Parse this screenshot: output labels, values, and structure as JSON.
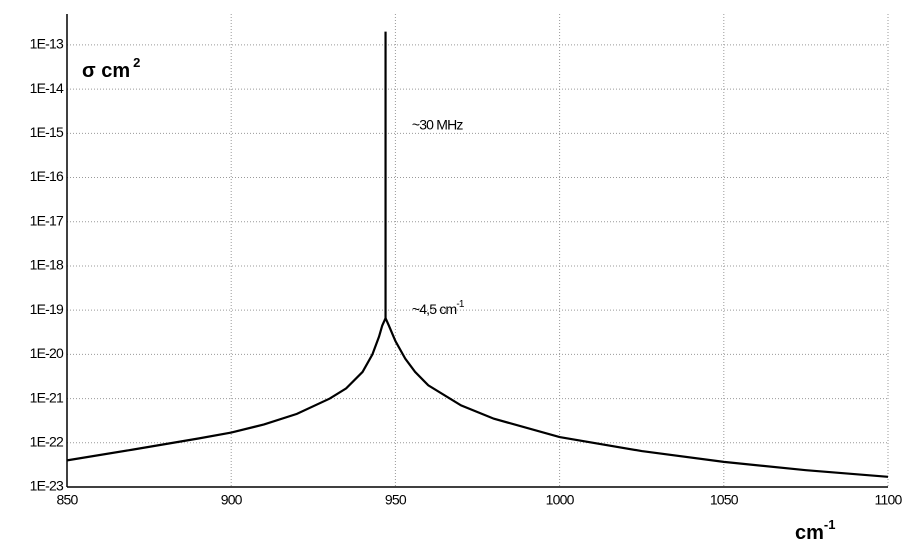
{
  "chart_data": {
    "type": "line",
    "ylabel": "σ cm",
    "ylabel_sup": "2",
    "xlabel": "cm",
    "xlabel_sup": "-1",
    "annotations": [
      {
        "text": "~30 MHz",
        "x": 955,
        "y": 1.5e-15
      },
      {
        "text": "~4,5 cm",
        "sup": "-1",
        "x": 955,
        "y": 1e-19
      }
    ],
    "log_y": true,
    "grid": true,
    "xlim": [
      850,
      1100
    ],
    "xticks": [
      850,
      900,
      950,
      1000,
      1050,
      1100
    ],
    "ylim": [
      1e-23,
      5e-13
    ],
    "yticks": [
      {
        "value": 1e-23,
        "label": "1E-23"
      },
      {
        "value": 1e-22,
        "label": "1E-22"
      },
      {
        "value": 1e-21,
        "label": "1E-21"
      },
      {
        "value": 1e-20,
        "label": "1E-20"
      },
      {
        "value": 1e-19,
        "label": "1E-19"
      },
      {
        "value": 1e-18,
        "label": "1E-18"
      },
      {
        "value": 1e-17,
        "label": "1E-17"
      },
      {
        "value": 1e-16,
        "label": "1E-16"
      },
      {
        "value": 1e-15,
        "label": "1E-15"
      },
      {
        "value": 1e-14,
        "label": "1E-14"
      },
      {
        "value": 1e-13,
        "label": "1E-13"
      }
    ],
    "series": [
      {
        "color": "#000000",
        "x": [
          850,
          870,
          890,
          900,
          910,
          920,
          930,
          935,
          940,
          943,
          945,
          946,
          947,
          948,
          949,
          950,
          953,
          956,
          960,
          970,
          980,
          1000,
          1025,
          1050,
          1075,
          1100
        ],
        "values": [
          4e-23,
          7e-23,
          1.25e-22,
          1.7e-22,
          2.6e-22,
          4.5e-22,
          1e-21,
          1.7e-21,
          4e-21,
          1e-20,
          2.5e-20,
          4.5e-20,
          6.6e-20,
          4.5e-20,
          3e-20,
          2e-20,
          8e-21,
          4e-21,
          2e-21,
          7e-22,
          3.5e-22,
          1.35e-22,
          6.5e-23,
          3.7e-23,
          2.4e-23,
          1.7e-23
        ]
      },
      {
        "color": "#000000",
        "x": [
          947,
          947
        ],
        "values": [
          6.6e-20,
          2e-13
        ]
      }
    ]
  }
}
